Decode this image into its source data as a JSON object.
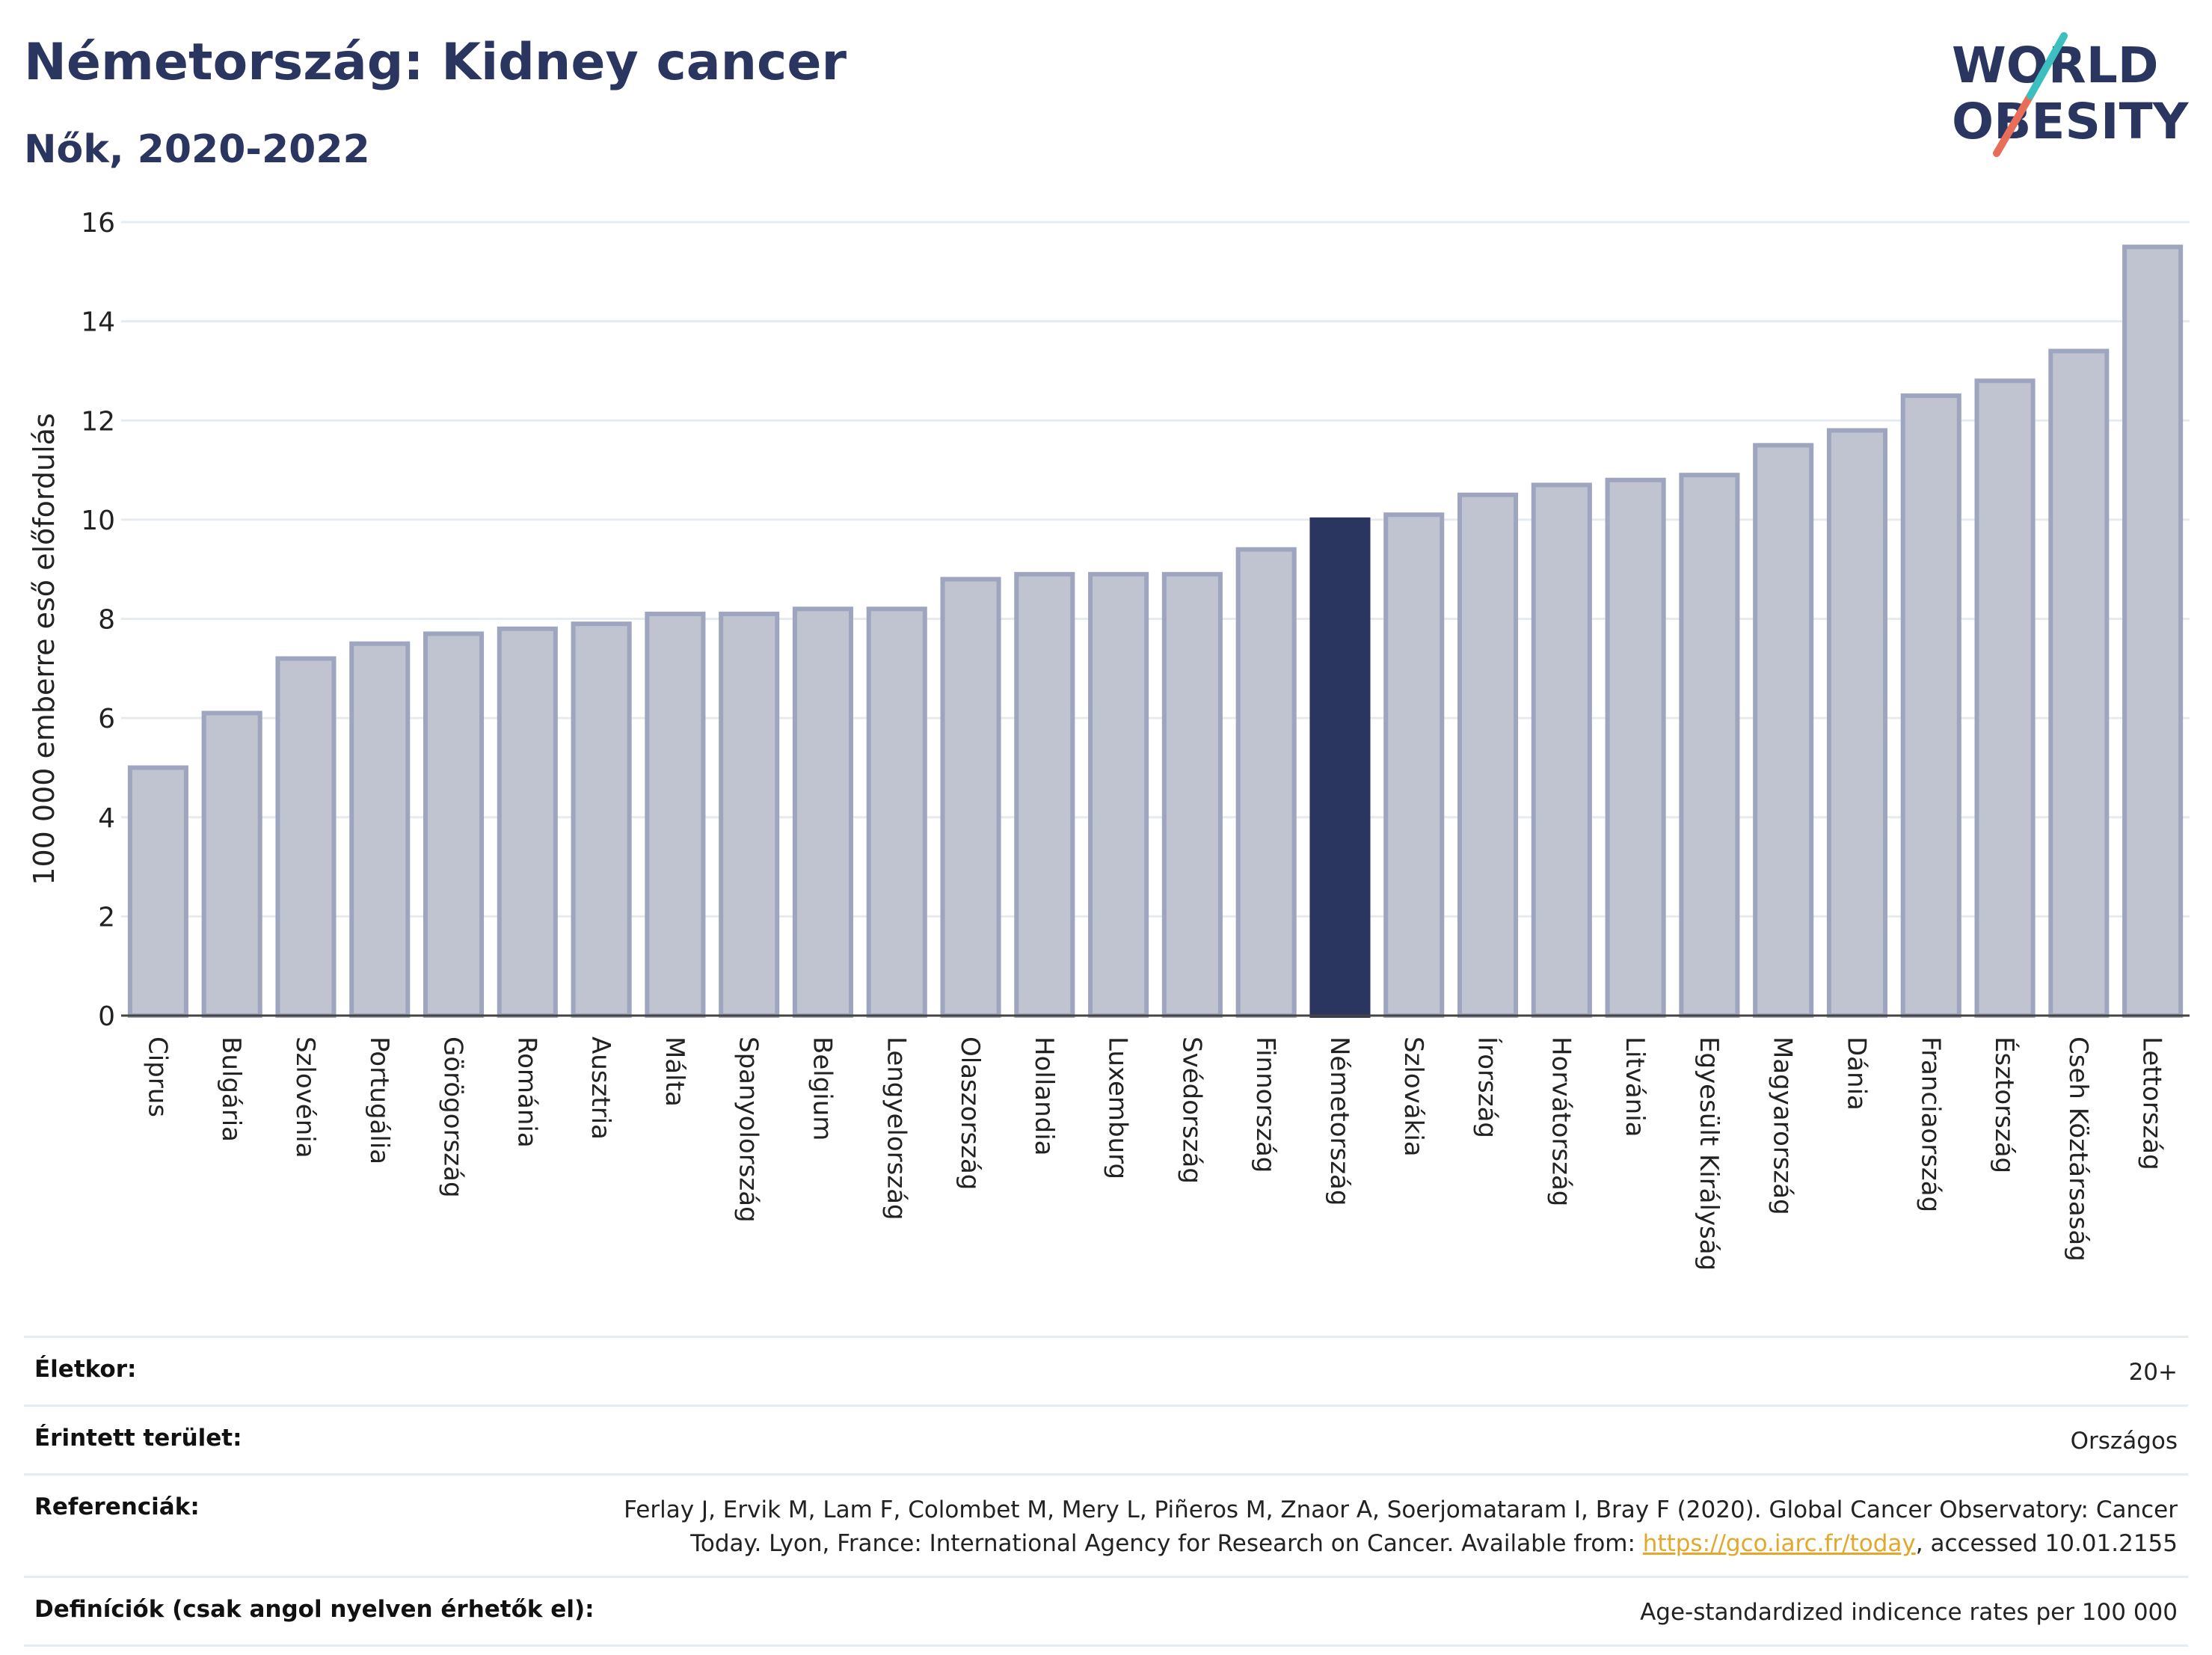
{
  "header": {
    "title": "Németország: Kidney cancer",
    "subtitle": "Nők, 2020-2022"
  },
  "logo": {
    "line1": "WORLD",
    "line2": "OBESITY"
  },
  "colors": {
    "highlight": "#2a3560",
    "bar_fill": "#c0c4d0",
    "bar_stroke": "#9ea5be",
    "grid": "#e6ebf0"
  },
  "chart_data": {
    "type": "bar",
    "ylabel": "100 000 emberre eső előfordulás",
    "ylim": [
      0,
      16
    ],
    "yticks": [
      0,
      2,
      4,
      6,
      8,
      10,
      12,
      14,
      16
    ],
    "grid": true,
    "highlight": "Németország",
    "categories": [
      "Ciprus",
      "Bulgária",
      "Szlovénia",
      "Portugália",
      "Görögország",
      "Románia",
      "Ausztria",
      "Málta",
      "Spanyolország",
      "Belgium",
      "Lengyelország",
      "Olaszország",
      "Hollandia",
      "Luxemburg",
      "Svédország",
      "Finnország",
      "Németország",
      "Szlovákia",
      "Írország",
      "Horvátország",
      "Litvánia",
      "Egyesült Királyság",
      "Magyarország",
      "Dánia",
      "Franciaország",
      "Észtország",
      "Cseh Köztársaság",
      "Lettország"
    ],
    "values": [
      5.0,
      6.1,
      7.2,
      7.5,
      7.7,
      7.8,
      7.9,
      8.1,
      8.1,
      8.2,
      8.2,
      8.8,
      8.9,
      8.9,
      8.9,
      9.4,
      10.0,
      10.1,
      10.5,
      10.7,
      10.8,
      10.9,
      11.5,
      11.8,
      12.5,
      12.8,
      13.4,
      15.5
    ]
  },
  "meta": {
    "age_label": "Életkor:",
    "age_value": "20+",
    "area_label": "Érintett terület:",
    "area_value": "Országos",
    "ref_label": "Referenciák:",
    "ref_text_1": "Ferlay J, Ervik M, Lam F, Colombet M, Mery L, Piñeros M, Znaor A, Soerjomataram I, Bray F (2020). Global Cancer Observatory: Cancer Today. Lyon, France: International Agency for Research on Cancer. Available from: ",
    "ref_link": "https://gco.iarc.fr/today",
    "ref_text_2": ", accessed 10.01.2155",
    "def_label": "Definíciók (csak angol nyelven érhetők el):",
    "def_value": "Age-standardized indicence rates per 100 000"
  }
}
